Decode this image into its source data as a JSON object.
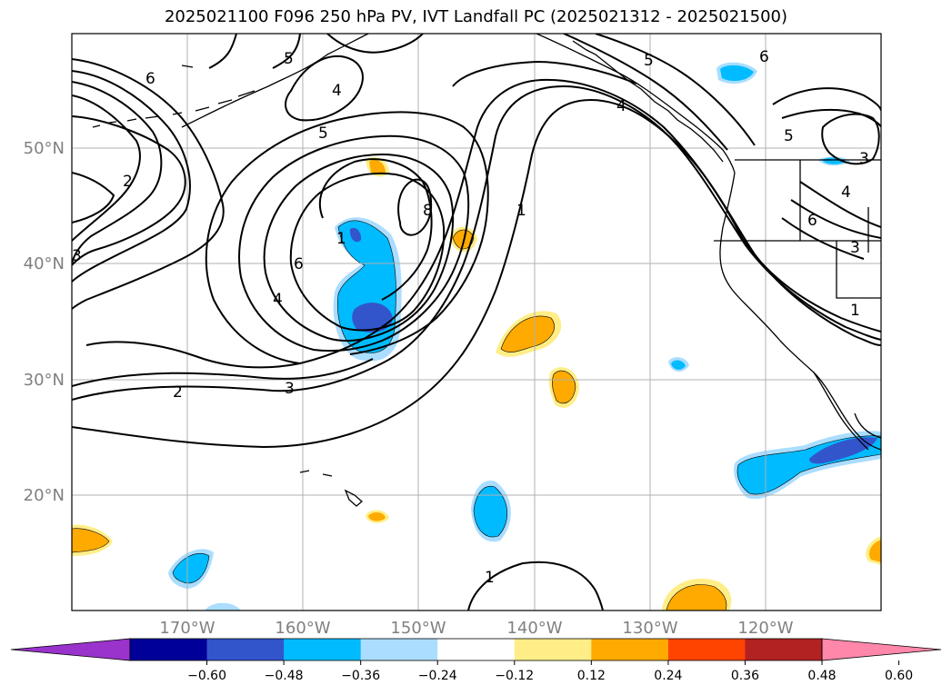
{
  "title": "2025021100 F096 250 hPa PV, IVT Landfall PC (2025021312 - 2025021500)",
  "map": {
    "projection": "PlateCarree",
    "lon_range": [
      -180,
      -110
    ],
    "lat_range": [
      10,
      60
    ],
    "lat_ticks": [
      "20°N",
      "30°N",
      "40°N",
      "50°N"
    ],
    "lon_ticks": [
      "170°W",
      "160°W",
      "150°W",
      "140°W",
      "130°W",
      "120°W"
    ],
    "gridlines": true
  },
  "contours": {
    "field": "250 hPa PV",
    "labels": [
      "5",
      "6",
      "4",
      "2",
      "3",
      "6",
      "5",
      "8",
      "1",
      "4",
      "3",
      "2",
      "3",
      "1",
      "5",
      "4",
      "5",
      "6",
      "4",
      "3",
      "6",
      "1",
      "1"
    ]
  },
  "colorbar": {
    "ticks": [
      "−0.60",
      "−0.48",
      "−0.36",
      "−0.24",
      "−0.12",
      "0.12",
      "0.24",
      "0.36",
      "0.48",
      "0.60"
    ],
    "colors": [
      "#9933cc",
      "#000099",
      "#3355cc",
      "#00bbff",
      "#aaddff",
      "#ffffff",
      "#ffee88",
      "#ffaa00",
      "#ff4400",
      "#b22222",
      "#ff88aa"
    ],
    "extend": "both"
  }
}
